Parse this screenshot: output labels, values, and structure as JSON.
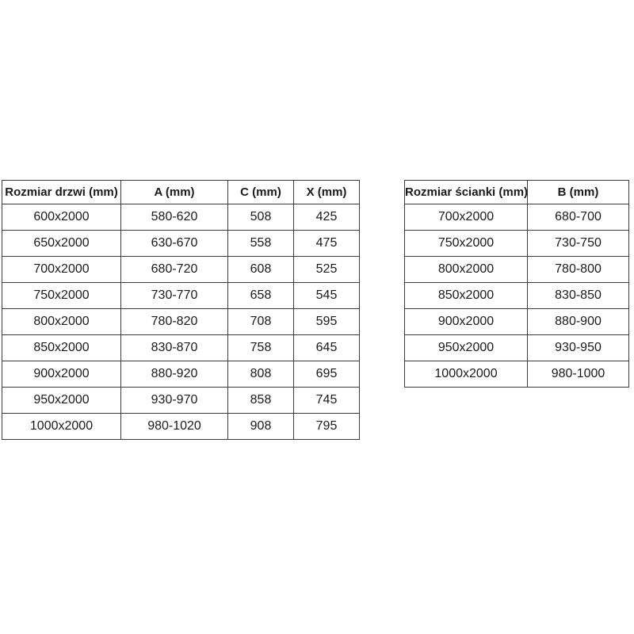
{
  "page": {
    "background": "#ffffff"
  },
  "colors": {
    "table_border": "#3b3b3b",
    "text": "#1a1a1a",
    "background": "#ffffff"
  },
  "tables": {
    "doors": {
      "name": "door-size-spec-table",
      "headers": [
        "Rozmiar drzwi (mm)",
        "A (mm)",
        "C (mm)",
        "X (mm)"
      ],
      "rows": [
        [
          "600x2000",
          "580-620",
          "508",
          "425"
        ],
        [
          "650x2000",
          "630-670",
          "558",
          "475"
        ],
        [
          "700x2000",
          "680-720",
          "608",
          "525"
        ],
        [
          "750x2000",
          "730-770",
          "658",
          "545"
        ],
        [
          "800x2000",
          "780-820",
          "708",
          "595"
        ],
        [
          "850x2000",
          "830-870",
          "758",
          "645"
        ],
        [
          "900x2000",
          "880-920",
          "808",
          "695"
        ],
        [
          "950x2000",
          "930-970",
          "858",
          "745"
        ],
        [
          "1000x2000",
          "980-1020",
          "908",
          "795"
        ]
      ]
    },
    "wall": {
      "name": "wall-size-spec-table",
      "headers": [
        "Rozmiar ścianki (mm)",
        "B (mm)"
      ],
      "rows": [
        [
          "700x2000",
          "680-700"
        ],
        [
          "750x2000",
          "730-750"
        ],
        [
          "800x2000",
          "780-800"
        ],
        [
          "850x2000",
          "830-850"
        ],
        [
          "900x2000",
          "880-900"
        ],
        [
          "950x2000",
          "930-950"
        ],
        [
          "1000x2000",
          "980-1000"
        ]
      ]
    }
  }
}
